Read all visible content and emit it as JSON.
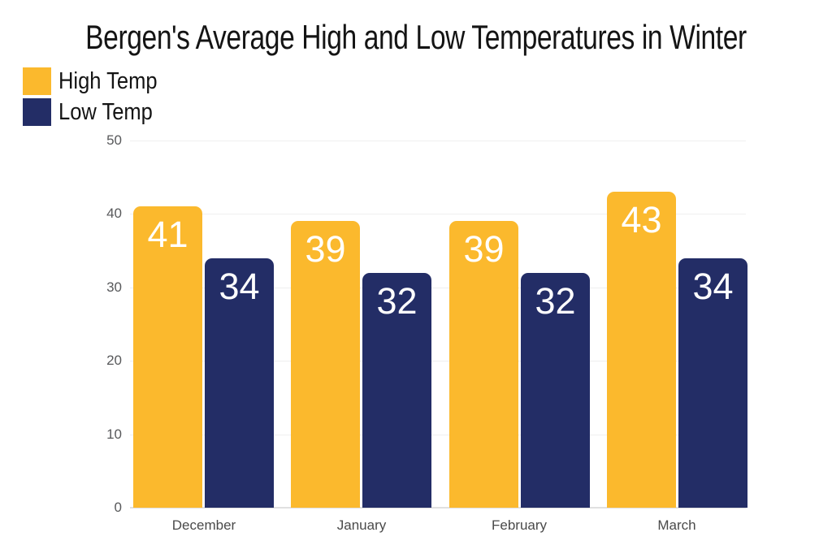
{
  "title": "Bergen's Average High and Low Temperatures in Winter",
  "colors": {
    "high_temp": "#FBB92D",
    "low_temp": "#232D66",
    "gridline": "#EFEFEF",
    "axis_line": "#E0E0E0",
    "tick_text": "#58595B",
    "category_text": "#4A4A4A",
    "title_text": "#141414",
    "value_text": "#FFFFFF",
    "background": "#FFFFFF"
  },
  "legend": {
    "items": [
      {
        "label": "High Temp",
        "color": "#FBB92D"
      },
      {
        "label": "Low Temp",
        "color": "#232D66"
      }
    ]
  },
  "chart_data": {
    "type": "bar",
    "title": "Bergen's Average High and Low Temperatures in Winter",
    "categories": [
      "December",
      "January",
      "February",
      "March"
    ],
    "series": [
      {
        "name": "High Temp",
        "color": "#FBB92D",
        "values": [
          41,
          39,
          39,
          43
        ]
      },
      {
        "name": "Low Temp",
        "color": "#232D66",
        "values": [
          34,
          32,
          32,
          34
        ]
      }
    ],
    "xlabel": "",
    "ylabel": "",
    "ylim": [
      0,
      50
    ],
    "yticks": [
      0,
      10,
      20,
      30,
      40,
      50
    ],
    "grid": true,
    "legend_position": "top-left",
    "bar_value_labels": true
  }
}
